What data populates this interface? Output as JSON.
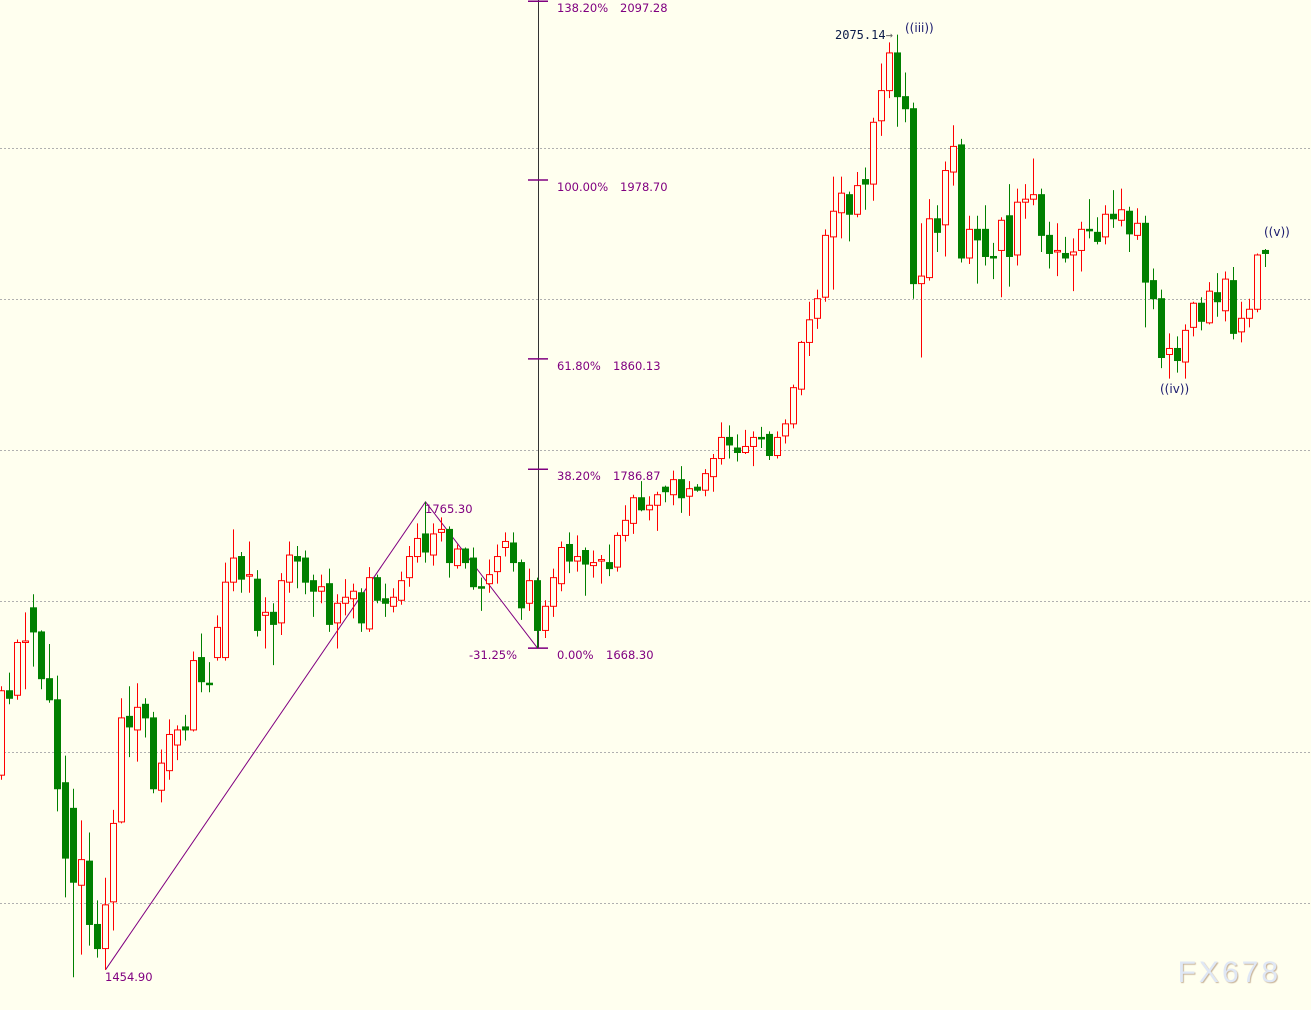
{
  "chart_data": {
    "type": "candlestick",
    "title": "",
    "xlabel": "",
    "ylabel": "",
    "grid": true,
    "colors": {
      "background": "#ffffef",
      "up": "#ff0000",
      "down": "#008000",
      "fib": "#800080",
      "grid": "#b0b0b0"
    },
    "fields": [
      "open",
      "high",
      "low",
      "close"
    ],
    "candles": [
      [
        1584,
        1643,
        1581,
        1640
      ],
      [
        1640,
        1652,
        1631,
        1635
      ],
      [
        1637,
        1674,
        1634,
        1672
      ],
      [
        1672,
        1692,
        1641,
        1673
      ],
      [
        1695,
        1704,
        1656,
        1679
      ],
      [
        1679,
        1680,
        1641,
        1648
      ],
      [
        1648,
        1671,
        1632,
        1634
      ],
      [
        1634,
        1650,
        1560,
        1575
      ],
      [
        1579,
        1597,
        1503,
        1529
      ],
      [
        1562,
        1575,
        1450,
        1513
      ],
      [
        1511,
        1554,
        1465,
        1528
      ],
      [
        1527,
        1546,
        1471,
        1485
      ],
      [
        1485,
        1501,
        1463,
        1469
      ],
      [
        1469,
        1516,
        1454.9,
        1498
      ],
      [
        1500,
        1561,
        1481,
        1552
      ],
      [
        1553,
        1635,
        1552,
        1622
      ],
      [
        1623,
        1643,
        1596,
        1616
      ],
      [
        1614,
        1645,
        1593,
        1629
      ],
      [
        1631,
        1635,
        1609,
        1622
      ],
      [
        1622,
        1626,
        1572,
        1575
      ],
      [
        1574,
        1601,
        1566,
        1592
      ],
      [
        1587,
        1621,
        1581,
        1611
      ],
      [
        1604,
        1617,
        1594,
        1614
      ],
      [
        1616,
        1624,
        1607,
        1614
      ],
      [
        1614,
        1666,
        1613,
        1660
      ],
      [
        1662,
        1678,
        1639,
        1646
      ],
      [
        1645,
        1659,
        1639,
        1644
      ],
      [
        1662,
        1690,
        1660,
        1682
      ],
      [
        1662,
        1725,
        1660,
        1712
      ],
      [
        1712,
        1747,
        1706,
        1728
      ],
      [
        1729,
        1732,
        1705,
        1714
      ],
      [
        1716,
        1739,
        1705,
        1717
      ],
      [
        1714,
        1720,
        1676,
        1680
      ],
      [
        1690,
        1702,
        1668,
        1692
      ],
      [
        1692,
        1698,
        1657,
        1684
      ],
      [
        1685,
        1718,
        1677,
        1713
      ],
      [
        1712,
        1739,
        1705,
        1730
      ],
      [
        1729,
        1736,
        1708,
        1726
      ],
      [
        1728,
        1733,
        1704,
        1712
      ],
      [
        1713,
        1717,
        1689,
        1706
      ],
      [
        1706,
        1717,
        1698,
        1709
      ],
      [
        1711,
        1721,
        1679,
        1684
      ],
      [
        1685,
        1704,
        1668,
        1698
      ],
      [
        1698,
        1714,
        1690,
        1702
      ],
      [
        1701,
        1711,
        1688,
        1706
      ],
      [
        1705,
        1708,
        1679,
        1685
      ],
      [
        1681,
        1722,
        1679,
        1715
      ],
      [
        1715,
        1717,
        1698,
        1700
      ],
      [
        1701,
        1711,
        1689,
        1698
      ],
      [
        1696,
        1708,
        1692,
        1702
      ],
      [
        1700,
        1719,
        1697,
        1713
      ],
      [
        1715,
        1736,
        1709,
        1729
      ],
      [
        1729,
        1751,
        1725,
        1741
      ],
      [
        1744,
        1765.3,
        1725,
        1732
      ],
      [
        1730,
        1751,
        1723,
        1744
      ],
      [
        1745,
        1755,
        1739,
        1747
      ],
      [
        1747,
        1749,
        1715,
        1725
      ],
      [
        1723,
        1737,
        1721,
        1734
      ],
      [
        1734,
        1735,
        1721,
        1725
      ],
      [
        1728,
        1735,
        1707,
        1709
      ],
      [
        1709,
        1715,
        1693,
        1708
      ],
      [
        1711,
        1727,
        1705,
        1717
      ],
      [
        1719,
        1737,
        1711,
        1729
      ],
      [
        1735,
        1745,
        1729,
        1739
      ],
      [
        1738,
        1745,
        1719,
        1725
      ],
      [
        1725,
        1727,
        1687,
        1695
      ],
      [
        1698,
        1721,
        1693,
        1713
      ],
      [
        1713,
        1715,
        1668.3,
        1680
      ],
      [
        1680,
        1700,
        1675,
        1696
      ],
      [
        1696,
        1721,
        1689,
        1715
      ],
      [
        1711,
        1739,
        1706,
        1735
      ],
      [
        1737,
        1745,
        1718,
        1726
      ],
      [
        1726,
        1743,
        1719,
        1729
      ],
      [
        1733,
        1735,
        1703,
        1724
      ],
      [
        1723,
        1733,
        1715,
        1725
      ],
      [
        1726,
        1730,
        1711,
        1727
      ],
      [
        1725,
        1737,
        1716,
        1721
      ],
      [
        1722,
        1745,
        1719,
        1743
      ],
      [
        1743,
        1763,
        1739,
        1753
      ],
      [
        1751,
        1770,
        1744,
        1768
      ],
      [
        1768,
        1779,
        1759,
        1760
      ],
      [
        1760,
        1769,
        1753,
        1763
      ],
      [
        1763,
        1772,
        1746,
        1770
      ],
      [
        1775,
        1776,
        1765,
        1772
      ],
      [
        1770,
        1786,
        1763,
        1780
      ],
      [
        1780,
        1789,
        1758,
        1768
      ],
      [
        1769,
        1779,
        1756,
        1774
      ],
      [
        1775,
        1777,
        1772,
        1773
      ],
      [
        1773,
        1787,
        1769,
        1784
      ],
      [
        1782,
        1797,
        1772,
        1794
      ],
      [
        1794,
        1818,
        1790,
        1808
      ],
      [
        1808,
        1816,
        1794,
        1803
      ],
      [
        1801,
        1810,
        1792,
        1798
      ],
      [
        1798,
        1813,
        1797,
        1802
      ],
      [
        1802,
        1812,
        1789,
        1808
      ],
      [
        1808,
        1815,
        1801,
        1807
      ],
      [
        1810,
        1812,
        1793,
        1796
      ],
      [
        1796,
        1812,
        1794,
        1808
      ],
      [
        1809,
        1820,
        1804,
        1817
      ],
      [
        1817,
        1843,
        1814,
        1841
      ],
      [
        1840,
        1872,
        1836,
        1871
      ],
      [
        1871,
        1898,
        1862,
        1886
      ],
      [
        1887,
        1906,
        1880,
        1900
      ],
      [
        1901,
        1946,
        1898,
        1942
      ],
      [
        1941,
        1981,
        1906,
        1958
      ],
      [
        1957,
        1981,
        1940,
        1970
      ],
      [
        1969,
        1971,
        1938,
        1956
      ],
      [
        1956,
        1984,
        1954,
        1975
      ],
      [
        1979,
        1987,
        1959,
        1976
      ],
      [
        1976,
        2020,
        1965,
        2017
      ],
      [
        2018,
        2056,
        2008,
        2038
      ],
      [
        2038,
        2070,
        2033,
        2063
      ],
      [
        2063,
        2075.14,
        2014,
        2034
      ],
      [
        2034,
        2050,
        2017,
        2026
      ],
      [
        2026,
        2030,
        1900,
        1910
      ],
      [
        1910,
        1950,
        1861,
        1915
      ],
      [
        1914,
        1966,
        1912,
        1953
      ],
      [
        1953,
        1962,
        1931,
        1944
      ],
      [
        1949,
        1991,
        1928,
        1985
      ],
      [
        1984,
        2015,
        1975,
        2001
      ],
      [
        2002,
        2006,
        1924,
        1927
      ],
      [
        1927,
        1955,
        1923,
        1946
      ],
      [
        1946,
        1955,
        1910,
        1939
      ],
      [
        1946,
        1962,
        1922,
        1928
      ],
      [
        1928,
        1937,
        1913,
        1927
      ],
      [
        1932,
        1954,
        1901,
        1952
      ],
      [
        1955,
        1976,
        1908,
        1928
      ],
      [
        1929,
        1973,
        1922,
        1964
      ],
      [
        1964,
        1976,
        1953,
        1966
      ],
      [
        1966,
        1993,
        1962,
        1969
      ],
      [
        1969,
        1973,
        1931,
        1942
      ],
      [
        1942,
        1951,
        1920,
        1930
      ],
      [
        1931,
        1950,
        1915,
        1932
      ],
      [
        1930,
        1941,
        1924,
        1927
      ],
      [
        1929,
        1940,
        1905,
        1931
      ],
      [
        1932,
        1951,
        1918,
        1946
      ],
      [
        1946,
        1966,
        1940,
        1945
      ],
      [
        1944,
        1954,
        1936,
        1938
      ],
      [
        1941,
        1962,
        1936,
        1956
      ],
      [
        1956,
        1972,
        1947,
        1953
      ],
      [
        1952,
        1973,
        1948,
        1959
      ],
      [
        1958,
        1961,
        1931,
        1943
      ],
      [
        1942,
        1960,
        1939,
        1950
      ],
      [
        1950,
        1955,
        1881,
        1911
      ],
      [
        1912,
        1920,
        1893,
        1900
      ],
      [
        1900,
        1906,
        1854,
        1861
      ],
      [
        1863,
        1877,
        1847,
        1867
      ],
      [
        1867,
        1875,
        1851,
        1859
      ],
      [
        1858,
        1883,
        1847,
        1879
      ],
      [
        1881,
        1898,
        1875,
        1897
      ],
      [
        1897,
        1901,
        1879,
        1885
      ],
      [
        1884,
        1911,
        1883,
        1905
      ],
      [
        1904,
        1917,
        1888,
        1898
      ],
      [
        1892,
        1918,
        1885,
        1913
      ],
      [
        1912,
        1921,
        1873,
        1877
      ],
      [
        1878,
        1898,
        1871,
        1887
      ],
      [
        1887,
        1900,
        1881,
        1893
      ],
      [
        1893,
        1930,
        1891,
        1929
      ],
      [
        1932,
        1933,
        1921,
        1930
      ]
    ],
    "fibonacci": {
      "levels": [
        {
          "pct": "138.20%",
          "value": "2097.28",
          "price": 2097.28
        },
        {
          "pct": "100.00%",
          "value": "1978.70",
          "price": 1978.7
        },
        {
          "pct": "61.80%",
          "value": "1860.13",
          "price": 1860.13
        },
        {
          "pct": "38.20%",
          "value": "1786.87",
          "price": 1786.87
        },
        {
          "pct": "0.00%",
          "value": "1668.30",
          "price": 1668.3
        }
      ],
      "swing_points": [
        {
          "label": "1454.90",
          "price": 1454.9,
          "candle": 13
        },
        {
          "label": "1765.30",
          "price": 1765.3,
          "candle": 53
        },
        {
          "label": "-31.25%",
          "price": 1668.3,
          "candle": 67
        }
      ]
    },
    "annotations": {
      "peak_value": "2075.14",
      "wave_iii": "((iii))",
      "wave_iv": "((iv))",
      "wave_v": "((v))"
    }
  },
  "watermark": "FX678"
}
